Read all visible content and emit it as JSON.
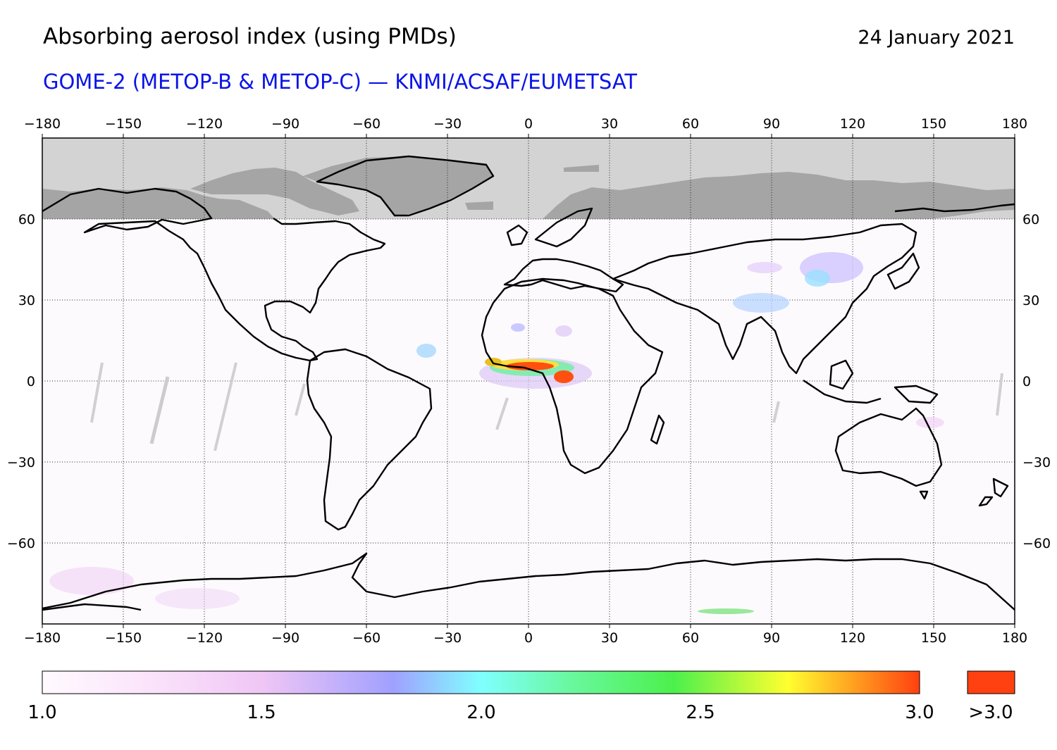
{
  "header": {
    "title": "Absorbing aerosol index (using PMDs)",
    "date": "24 January 2021",
    "subtitle": "GOME-2 (METOP-B & METOP-C) — KNMI/ACSAF/EUMETSAT"
  },
  "map": {
    "projection": "plate carree",
    "lon_range": [
      -180,
      180
    ],
    "lat_range": [
      -90,
      90
    ],
    "no_data_north_of_lat": 60,
    "graticule": "dotted",
    "lon_ticks": [
      "−180",
      "−150",
      "−120",
      "−90",
      "−60",
      "−30",
      "0",
      "30",
      "60",
      "90",
      "120",
      "150",
      "180"
    ],
    "lat_ticks": [
      "60",
      "30",
      "0",
      "−30",
      "−60"
    ],
    "colors": {
      "ocean": "#fdfafd",
      "no_data_fill": "#d3d3d3",
      "no_data_land": "#a5a5a5",
      "coastline": "#000000"
    }
  },
  "colorbar": {
    "labels": [
      "1.0",
      "1.5",
      "2.0",
      "2.5",
      "3.0"
    ],
    "over_label": ">3.0",
    "range": [
      1.0,
      3.0
    ],
    "colors": [
      "#fffaff",
      "#f5c8f5",
      "#a0a0ff",
      "#80ffff",
      "#4cf04c",
      "#ffff30",
      "#ff4010"
    ],
    "over_color": "#ff4010"
  }
}
